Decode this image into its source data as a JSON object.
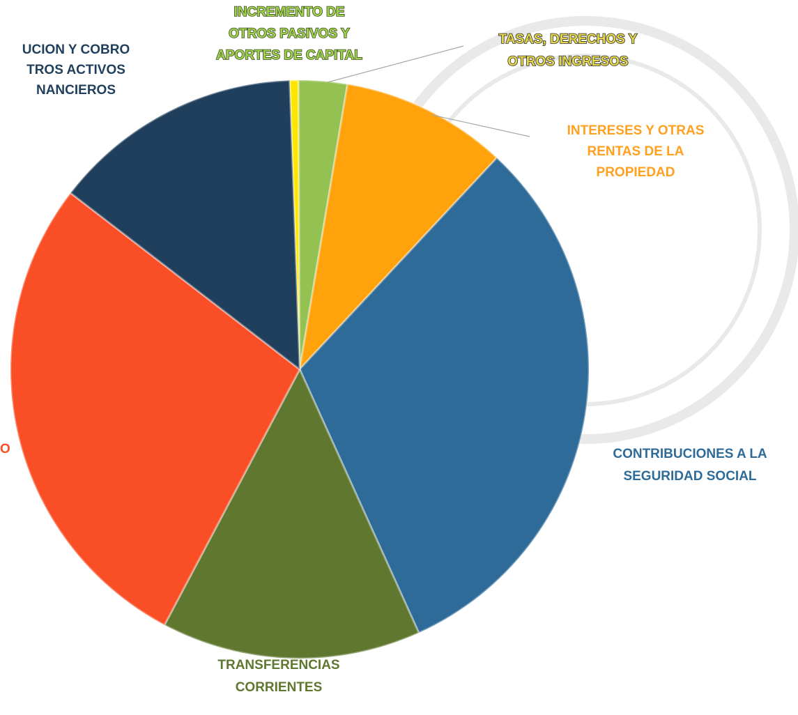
{
  "chart_data": {
    "type": "pie",
    "categories": [
      [
        "TASAS, DERECHOS Y",
        "OTROS INGRESOS"
      ],
      [
        "INCREMENTO DE",
        "OTROS PASIVOS Y",
        "APORTES DE CAPITAL"
      ],
      [
        "INTERESES Y OTRAS",
        "RENTAS DE LA",
        "PROPIEDAD"
      ],
      [
        "CONTRIBUCIONES A LA",
        "SEGURIDAD SOCIAL"
      ],
      [
        "TRANSFERENCIAS",
        "CORRIENTES"
      ],
      [
        "O"
      ],
      [
        "UCION Y COBRO",
        "TROS ACTIVOS",
        "NANCIEROS"
      ]
    ],
    "values": [
      0.5,
      2.7,
      9.3,
      31.3,
      14.5,
      27.7,
      14.0
    ],
    "colors": [
      "#ffe600",
      "#93c152",
      "#ffa20c",
      "#2e6b98",
      "#5f772e",
      "#fa4f26",
      "#1f3f5c"
    ]
  }
}
